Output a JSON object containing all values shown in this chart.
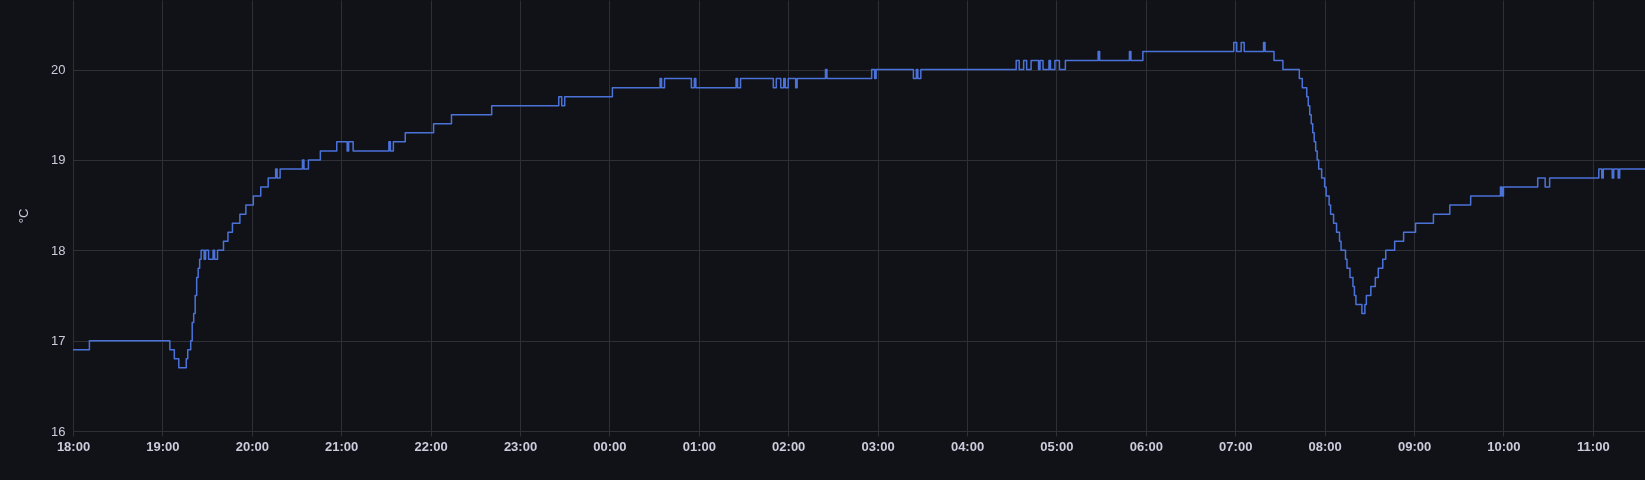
{
  "chart_data": {
    "type": "step",
    "ylabel": "°C",
    "grid": true,
    "xlim": [
      "--01-01T18:00",
      "--01-02T11:35"
    ],
    "ylim": [
      16,
      20.77
    ],
    "yticks": [
      16,
      17,
      18,
      19,
      20
    ],
    "xticks": [
      {
        "value": "--01-01T18:00",
        "label": "18:00"
      },
      {
        "value": "--01-01T19:00",
        "label": "19:00"
      },
      {
        "value": "--01-01T20:00",
        "label": "20:00"
      },
      {
        "value": "--01-01T21:00",
        "label": "21:00"
      },
      {
        "value": "--01-01T22:00",
        "label": "22:00"
      },
      {
        "value": "--01-01T23:00",
        "label": "23:00"
      },
      {
        "value": "--01-02T00:00",
        "label": "00:00"
      },
      {
        "value": "--01-02T01:00",
        "label": "01:00"
      },
      {
        "value": "--01-02T02:00",
        "label": "02:00"
      },
      {
        "value": "--01-02T03:00",
        "label": "03:00"
      },
      {
        "value": "--01-02T04:00",
        "label": "04:00"
      },
      {
        "value": "--01-02T05:00",
        "label": "05:00"
      },
      {
        "value": "--01-02T06:00",
        "label": "06:00"
      },
      {
        "value": "--01-02T07:00",
        "label": "07:00"
      },
      {
        "value": "--01-02T08:00",
        "label": "08:00"
      },
      {
        "value": "--01-02T09:00",
        "label": "09:00"
      },
      {
        "value": "--01-02T10:00",
        "label": "10:00"
      },
      {
        "value": "--01-02T11:00",
        "label": "11:00"
      }
    ],
    "series": [
      {
        "color": "#4a72d9",
        "x": [
          "--01-01T18:00",
          "--01-01T18:11",
          "--01-01T19:05",
          "--01-01T19:08",
          "--01-01T19:11",
          "--01-01T19:16",
          "--01-01T19:17",
          "--01-01T19:19",
          "--01-01T19:20",
          "--01-01T19:21",
          "--01-01T19:22",
          "--01-01T19:23",
          "--01-01T19:24",
          "--01-01T19:25",
          "--01-01T19:26",
          "--01-01T19:28",
          "--01-01T19:29",
          "--01-01T19:31",
          "--01-01T19:34",
          "--01-01T19:35",
          "--01-01T19:37",
          "--01-01T19:41",
          "--01-01T19:44",
          "--01-01T19:47",
          "--01-01T19:52",
          "--01-01T19:56",
          "--01-01T20:01",
          "--01-01T20:06",
          "--01-01T20:11",
          "--01-01T20:16",
          "--01-01T20:17",
          "--01-01T20:19",
          "--01-01T20:34",
          "--01-01T20:35",
          "--01-01T20:38",
          "--01-01T20:46",
          "--01-01T20:57",
          "--01-01T21:04",
          "--01-01T21:05",
          "--01-01T21:08",
          "--01-01T21:32",
          "--01-01T21:33",
          "--01-01T21:35",
          "--01-01T21:43",
          "--01-01T22:02",
          "--01-01T22:14",
          "--01-01T22:41",
          "--01-01T23:26",
          "--01-01T23:28",
          "--01-01T23:30",
          "--01-02T00:02",
          "--01-02T00:34",
          "--01-02T00:35",
          "--01-02T00:37",
          "--01-02T00:55",
          "--01-02T00:57",
          "--01-02T00:58",
          "--01-02T01:25",
          "--01-02T01:26",
          "--01-02T01:28",
          "--01-02T01:50",
          "--01-02T01:52",
          "--01-02T01:55",
          "--01-02T01:57",
          "--01-02T01:58",
          "--01-02T02:00",
          "--01-02T02:05",
          "--01-02T02:06",
          "--01-02T02:25",
          "--01-02T02:26",
          "--01-02T02:56",
          "--01-02T02:58",
          "--01-02T02:59",
          "--01-02T03:24",
          "--01-02T03:26",
          "--01-02T03:27",
          "--01-02T03:29",
          "--01-02T04:33",
          "--01-02T04:35",
          "--01-02T04:38",
          "--01-02T04:40",
          "--01-02T04:43",
          "--01-02T04:48",
          "--01-02T04:49",
          "--01-02T04:51",
          "--01-02T04:55",
          "--01-02T04:56",
          "--01-02T04:59",
          "--01-02T05:02",
          "--01-02T05:06",
          "--01-02T05:28",
          "--01-02T05:29",
          "--01-02T05:49",
          "--01-02T05:50",
          "--01-02T05:58",
          "--01-02T06:59",
          "--01-02T07:01",
          "--01-02T07:04",
          "--01-02T07:06",
          "--01-02T07:19",
          "--01-02T07:20",
          "--01-02T07:26",
          "--01-02T07:32",
          "--01-02T07:43",
          "--01-02T07:45",
          "--01-02T07:48",
          "--01-02T07:49",
          "--01-02T07:50",
          "--01-02T07:51",
          "--01-02T07:52",
          "--01-02T07:53",
          "--01-02T07:54",
          "--01-02T07:55",
          "--01-02T07:56",
          "--01-02T07:58",
          "--01-02T08:00",
          "--01-02T08:01",
          "--01-02T08:03",
          "--01-02T08:04",
          "--01-02T08:06",
          "--01-02T08:08",
          "--01-02T08:10",
          "--01-02T08:11",
          "--01-02T08:14",
          "--01-02T08:15",
          "--01-02T08:17",
          "--01-02T08:19",
          "--01-02T08:20",
          "--01-02T08:21",
          "--01-02T08:25",
          "--01-02T08:27",
          "--01-02T08:28",
          "--01-02T08:31",
          "--01-02T08:34",
          "--01-02T08:36",
          "--01-02T08:39",
          "--01-02T08:41",
          "--01-02T08:47",
          "--01-02T08:53",
          "--01-02T09:01",
          "--01-02T09:13",
          "--01-02T09:24",
          "--01-02T09:38",
          "--01-02T09:58",
          "--01-02T09:59",
          "--01-02T10:00",
          "--01-02T10:23",
          "--01-02T10:28",
          "--01-02T10:31",
          "--01-02T11:04",
          "--01-02T11:06",
          "--01-02T11:07",
          "--01-02T11:13",
          "--01-02T11:14",
          "--01-02T11:17",
          "--01-02T11:18",
          "--01-02T11:35"
        ],
        "values": [
          16.9,
          17,
          16.9,
          16.8,
          16.7,
          16.8,
          16.9,
          17,
          17.2,
          17.3,
          17.5,
          17.7,
          17.8,
          17.9,
          18,
          17.9,
          18,
          17.9,
          18,
          17.9,
          18,
          18.1,
          18.2,
          18.3,
          18.4,
          18.5,
          18.6,
          18.7,
          18.8,
          18.9,
          18.8,
          18.9,
          19,
          18.9,
          19,
          19.1,
          19.2,
          19.1,
          19.2,
          19.1,
          19.2,
          19.1,
          19.2,
          19.3,
          19.4,
          19.5,
          19.6,
          19.7,
          19.6,
          19.7,
          19.8,
          19.9,
          19.8,
          19.9,
          19.8,
          19.9,
          19.8,
          19.9,
          19.8,
          19.9,
          19.8,
          19.9,
          19.8,
          19.9,
          19.8,
          19.9,
          19.8,
          19.9,
          20,
          19.9,
          20,
          19.9,
          20,
          19.9,
          20,
          19.9,
          20,
          20.1,
          20,
          20.1,
          20,
          20.1,
          20,
          20.1,
          20,
          20.1,
          20,
          20.1,
          20,
          20.1,
          20.2,
          20.1,
          20.2,
          20.1,
          20.2,
          20.3,
          20.2,
          20.3,
          20.2,
          20.3,
          20.2,
          20.1,
          20,
          19.9,
          19.8,
          19.7,
          19.6,
          19.5,
          19.4,
          19.3,
          19.2,
          19.1,
          19,
          18.9,
          18.8,
          18.7,
          18.6,
          18.5,
          18.4,
          18.3,
          18.2,
          18.1,
          18,
          17.9,
          17.8,
          17.7,
          17.6,
          17.5,
          17.4,
          17.3,
          17.4,
          17.5,
          17.6,
          17.7,
          17.8,
          17.9,
          18,
          18.1,
          18.2,
          18.3,
          18.4,
          18.5,
          18.6,
          18.7,
          18.6,
          18.7,
          18.8,
          18.7,
          18.8,
          18.9,
          18.8,
          18.9,
          18.8,
          18.9,
          18.8,
          18.9,
          18.9
        ]
      }
    ]
  }
}
